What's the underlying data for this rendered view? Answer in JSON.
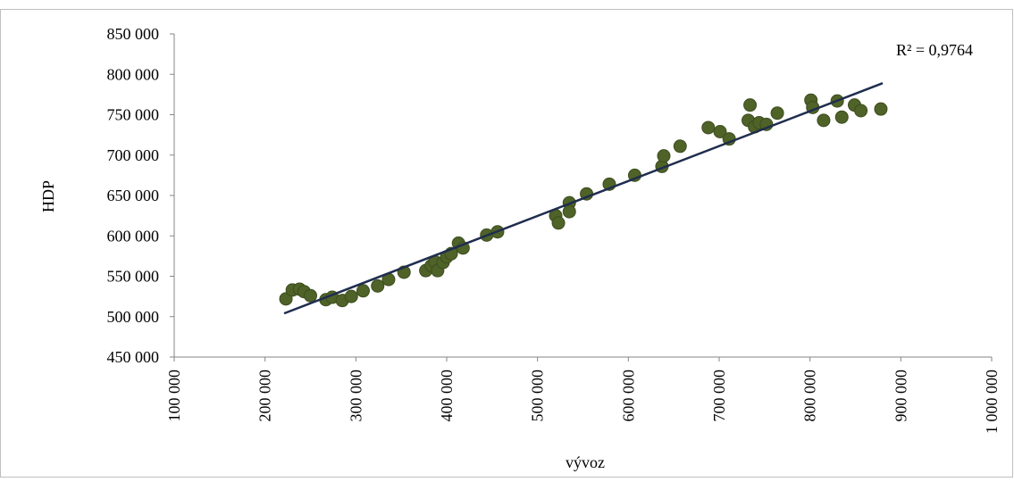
{
  "chart_data": {
    "type": "scatter",
    "x_label": "vývoz",
    "y_label": "HDP",
    "annotation": "R² = 0,9764",
    "color": "#4f6228",
    "trendline_color": "#1f2d4e",
    "xlim": [
      100000,
      1000000
    ],
    "xticks": [
      {
        "value": 100000,
        "label": "100 000"
      },
      {
        "value": 200000,
        "label": "200 000"
      },
      {
        "value": 300000,
        "label": "300 000"
      },
      {
        "value": 400000,
        "label": "400 000"
      },
      {
        "value": 500000,
        "label": "500 000"
      },
      {
        "value": 600000,
        "label": "600 000"
      },
      {
        "value": 700000,
        "label": "700 000"
      },
      {
        "value": 800000,
        "label": "800 000"
      },
      {
        "value": 900000,
        "label": "900 000"
      },
      {
        "value": 1000000,
        "label": "1 000 000"
      }
    ],
    "ylim": [
      450000,
      850000
    ],
    "yticks": [
      {
        "value": 450000,
        "label": "450 000"
      },
      {
        "value": 500000,
        "label": "500 000"
      },
      {
        "value": 550000,
        "label": "550 000"
      },
      {
        "value": 600000,
        "label": "600 000"
      },
      {
        "value": 650000,
        "label": "650 000"
      },
      {
        "value": 700000,
        "label": "700 000"
      },
      {
        "value": 750000,
        "label": "750 000"
      },
      {
        "value": 800000,
        "label": "800 000"
      },
      {
        "value": 850000,
        "label": "850 000"
      }
    ],
    "x": [
      223000,
      230000,
      238000,
      243000,
      250000,
      267000,
      274000,
      285000,
      295000,
      308000,
      324000,
      336000,
      353000,
      377000,
      383000,
      387000,
      390000,
      396000,
      400000,
      405000,
      413000,
      418000,
      444000,
      456000,
      520000,
      523000,
      535000,
      535000,
      554000,
      579000,
      607000,
      637000,
      639000,
      657000,
      688000,
      701000,
      711000,
      732000,
      734000,
      739000,
      744000,
      752000,
      764000,
      801000,
      803000,
      815000,
      830000,
      835000,
      849000,
      856000,
      878000
    ],
    "y": [
      522000,
      533000,
      534000,
      531000,
      526000,
      521000,
      524000,
      520000,
      525000,
      532000,
      538000,
      546000,
      555000,
      557000,
      563000,
      568000,
      557000,
      567000,
      574000,
      578000,
      591000,
      585000,
      601000,
      605000,
      625000,
      616000,
      641000,
      630000,
      652000,
      664000,
      675000,
      686000,
      699000,
      711000,
      734000,
      729000,
      720000,
      743000,
      762000,
      735000,
      740000,
      738000,
      752000,
      768000,
      759000,
      743000,
      767000,
      747000,
      762000,
      755000,
      757000
    ],
    "trendline": {
      "x": [
        221000,
        880000
      ],
      "y": [
        504000,
        789000
      ]
    }
  }
}
